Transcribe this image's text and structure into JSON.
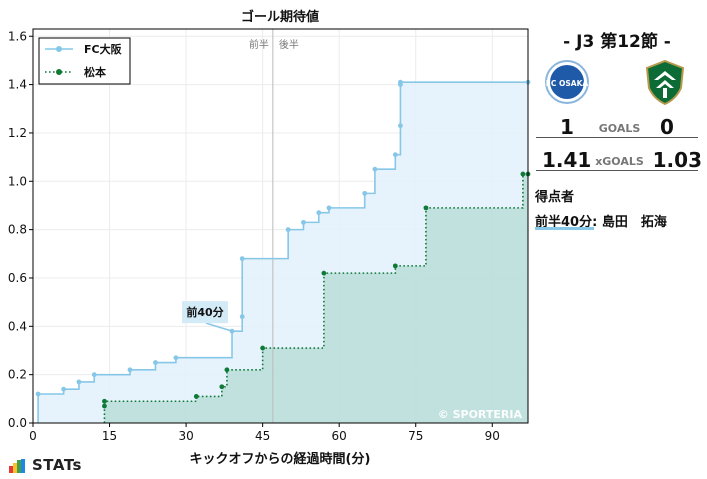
{
  "chart_data": {
    "type": "line",
    "title": "ゴール期待値",
    "xlabel": "キックオフからの経過時間(分)",
    "ylabel": "",
    "xlim": [
      0,
      97
    ],
    "ylim": [
      0,
      1.63
    ],
    "xticks": [
      0,
      15,
      30,
      45,
      60,
      75,
      90
    ],
    "yticks": [
      0.0,
      0.2,
      0.4,
      0.6,
      0.8,
      1.0,
      1.2,
      1.4,
      1.6
    ],
    "ytick_labels": [
      "0.0",
      "0.2",
      "0.4",
      "0.6",
      "0.8",
      "1.0",
      "1.2",
      "1.4",
      "1.6"
    ],
    "grid": true,
    "legend": "top-left",
    "half_time": 47,
    "half_labels": {
      "first": "前半",
      "second": "後半"
    },
    "series": [
      {
        "name": "FC大阪",
        "color": "#86c7e8",
        "fill": "#e3f1fb",
        "line_style": "solid",
        "points": [
          [
            1,
            0.12
          ],
          [
            6,
            0.14
          ],
          [
            9,
            0.17
          ],
          [
            12,
            0.2
          ],
          [
            19,
            0.22
          ],
          [
            24,
            0.25
          ],
          [
            28,
            0.27
          ],
          [
            39,
            0.38
          ],
          [
            41,
            0.44
          ],
          [
            41,
            0.68
          ],
          [
            50,
            0.8
          ],
          [
            53,
            0.83
          ],
          [
            56,
            0.87
          ],
          [
            58,
            0.89
          ],
          [
            65,
            0.95
          ],
          [
            67,
            1.05
          ],
          [
            71,
            1.11
          ],
          [
            72,
            1.23
          ],
          [
            72,
            1.4
          ],
          [
            72,
            1.41
          ],
          [
            97,
            1.41
          ]
        ]
      },
      {
        "name": "松本",
        "color": "#0f7a38",
        "fill": "#b9ddd8",
        "line_style": "dotted",
        "points": [
          [
            14,
            0.07
          ],
          [
            14,
            0.09
          ],
          [
            32,
            0.11
          ],
          [
            37,
            0.15
          ],
          [
            38,
            0.22
          ],
          [
            45,
            0.31
          ],
          [
            57,
            0.62
          ],
          [
            71,
            0.65
          ],
          [
            77,
            0.89
          ],
          [
            96,
            1.03
          ],
          [
            97,
            1.03
          ]
        ]
      }
    ],
    "annotations": [
      {
        "text": "前40分",
        "x": 39,
        "y": 0.38,
        "series": "FC大阪"
      }
    ]
  },
  "watermark": "© SPORTERIA",
  "match": {
    "title": "-  J3 第12節  -",
    "home_score": "1",
    "away_score": "0",
    "goals_label": "GOALS",
    "home_xg": "1.41",
    "away_xg": "1.03",
    "xg_label": "xGOALS"
  },
  "crests": {
    "home": {
      "text": "FC OSAKA",
      "colors": [
        "#ffffff",
        "#1f5aa8",
        "#8ab6de"
      ]
    },
    "away": {
      "colors": [
        "#0d6b35",
        "#ffffff",
        "#b59a4d"
      ]
    }
  },
  "scorers": {
    "title": "得点者",
    "items": [
      "前半40分: 島田　拓海"
    ]
  },
  "brand": {
    "name": "STATs",
    "bar_colors": [
      "#e53935",
      "#fbc02d",
      "#43a047",
      "#1e88e5"
    ]
  }
}
